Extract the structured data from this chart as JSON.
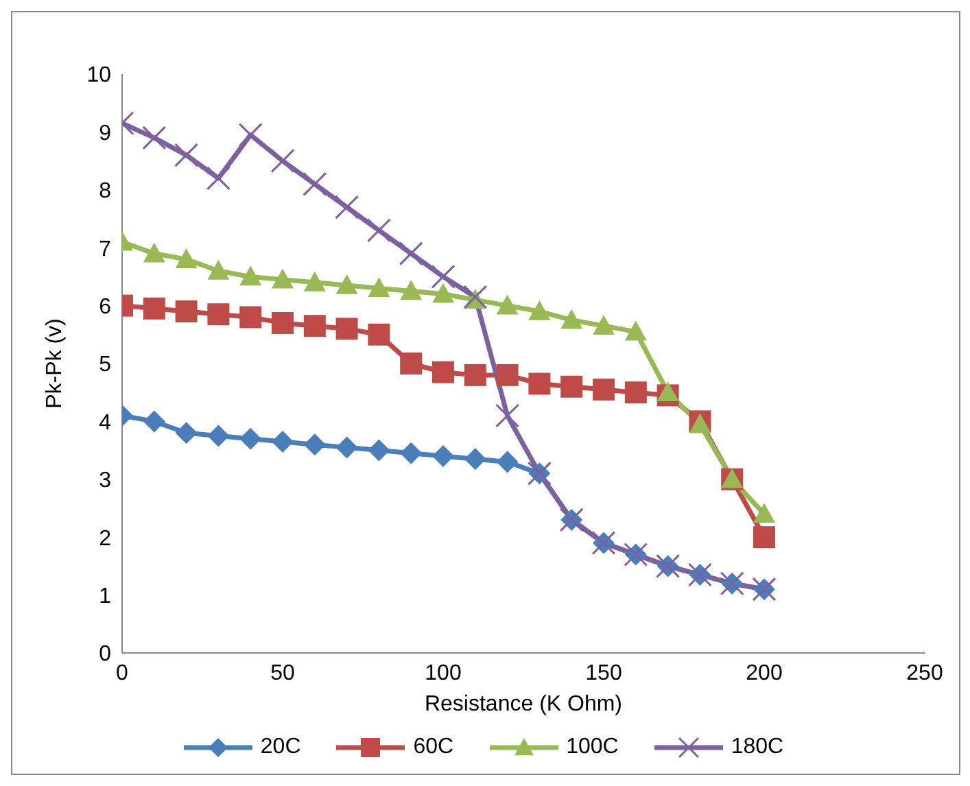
{
  "chart_data": {
    "type": "line",
    "xlabel": "Resistance (K Ohm)",
    "ylabel": "Pk-Pk (v)",
    "x": [
      0,
      10,
      20,
      30,
      40,
      50,
      60,
      70,
      80,
      90,
      100,
      110,
      120,
      130,
      140,
      150,
      160,
      170,
      180,
      190,
      200
    ],
    "xlim": [
      0,
      250
    ],
    "xticks": [
      0,
      50,
      100,
      150,
      200,
      250
    ],
    "ylim": [
      0,
      10
    ],
    "yticks": [
      0,
      1,
      2,
      3,
      4,
      5,
      6,
      7,
      8,
      9,
      10
    ],
    "grid": false,
    "legend": "bottom",
    "line_style": "solid",
    "series": [
      {
        "name": "20C",
        "color": "#4a7ebb",
        "marker": "diamond",
        "values": [
          4.1,
          4.0,
          3.8,
          3.75,
          3.7,
          3.65,
          3.6,
          3.55,
          3.5,
          3.45,
          3.4,
          3.35,
          3.3,
          3.1,
          2.3,
          1.9,
          1.7,
          1.5,
          1.35,
          1.2,
          1.1
        ]
      },
      {
        "name": "60C",
        "color": "#be4b48",
        "marker": "square",
        "values": [
          6.0,
          5.95,
          5.9,
          5.85,
          5.8,
          5.7,
          5.65,
          5.6,
          5.5,
          5.0,
          4.85,
          4.8,
          4.8,
          4.65,
          4.6,
          4.55,
          4.5,
          4.45,
          4.0,
          3.0,
          2.0
        ]
      },
      {
        "name": "100C",
        "color": "#98b954",
        "marker": "triangle",
        "values": [
          7.1,
          6.9,
          6.8,
          6.6,
          6.5,
          6.45,
          6.4,
          6.35,
          6.3,
          6.25,
          6.2,
          6.1,
          6.0,
          5.9,
          5.75,
          5.65,
          5.55,
          4.5,
          3.95,
          3.0,
          2.4
        ]
      },
      {
        "name": "180C",
        "color": "#7d60a0",
        "marker": "cross",
        "values": [
          9.15,
          8.9,
          8.6,
          8.2,
          8.95,
          8.5,
          8.1,
          7.7,
          7.3,
          6.9,
          6.5,
          6.15,
          4.1,
          3.1,
          2.3,
          1.9,
          1.7,
          1.5,
          1.35,
          1.2,
          1.1
        ]
      }
    ]
  }
}
